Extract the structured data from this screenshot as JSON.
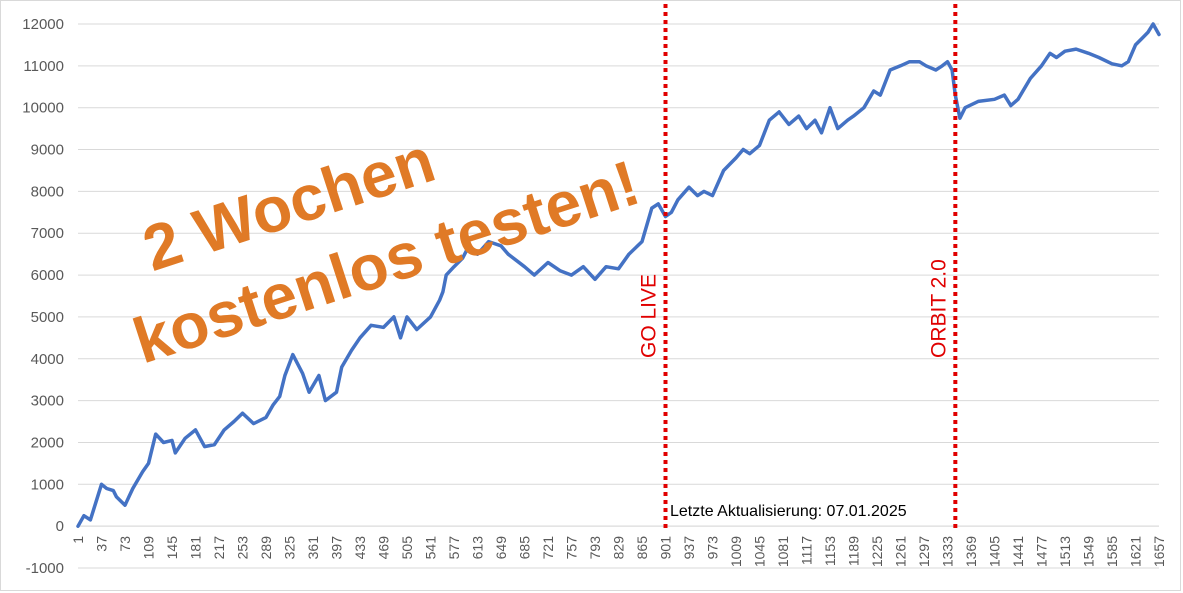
{
  "chart_data": {
    "type": "line",
    "title": "",
    "xlabel": "",
    "ylabel": "",
    "ylim": [
      -1000,
      12000
    ],
    "yticks": [
      -1000,
      0,
      1000,
      2000,
      3000,
      4000,
      5000,
      6000,
      7000,
      8000,
      9000,
      10000,
      11000,
      12000
    ],
    "xlim": [
      1,
      1657
    ],
    "xticks": [
      1,
      37,
      73,
      109,
      145,
      181,
      217,
      253,
      289,
      325,
      361,
      397,
      433,
      469,
      505,
      541,
      577,
      613,
      649,
      685,
      721,
      757,
      793,
      829,
      865,
      901,
      937,
      973,
      1009,
      1045,
      1081,
      1117,
      1153,
      1189,
      1225,
      1261,
      1297,
      1333,
      1369,
      1405,
      1441,
      1477,
      1513,
      1549,
      1585,
      1621,
      1657
    ],
    "grid": "horizontal",
    "legend": "none",
    "series": [
      {
        "color": "#4472c4",
        "points": [
          [
            1,
            0
          ],
          [
            10,
            250
          ],
          [
            20,
            150
          ],
          [
            37,
            1000
          ],
          [
            45,
            900
          ],
          [
            55,
            850
          ],
          [
            60,
            700
          ],
          [
            73,
            500
          ],
          [
            85,
            900
          ],
          [
            100,
            1300
          ],
          [
            109,
            1500
          ],
          [
            120,
            2200
          ],
          [
            132,
            2000
          ],
          [
            145,
            2050
          ],
          [
            150,
            1750
          ],
          [
            165,
            2100
          ],
          [
            181,
            2300
          ],
          [
            195,
            1900
          ],
          [
            210,
            1950
          ],
          [
            225,
            2300
          ],
          [
            240,
            2500
          ],
          [
            253,
            2700
          ],
          [
            270,
            2450
          ],
          [
            289,
            2600
          ],
          [
            300,
            2900
          ],
          [
            310,
            3100
          ],
          [
            318,
            3600
          ],
          [
            330,
            4100
          ],
          [
            345,
            3650
          ],
          [
            355,
            3200
          ],
          [
            370,
            3600
          ],
          [
            380,
            3000
          ],
          [
            397,
            3200
          ],
          [
            405,
            3800
          ],
          [
            420,
            4200
          ],
          [
            433,
            4500
          ],
          [
            450,
            4800
          ],
          [
            469,
            4750
          ],
          [
            485,
            5000
          ],
          [
            495,
            4500
          ],
          [
            505,
            5000
          ],
          [
            520,
            4700
          ],
          [
            541,
            5000
          ],
          [
            555,
            5400
          ],
          [
            560,
            5600
          ],
          [
            565,
            6000
          ],
          [
            577,
            6200
          ],
          [
            590,
            6400
          ],
          [
            600,
            6700
          ],
          [
            613,
            6500
          ],
          [
            630,
            6800
          ],
          [
            649,
            6700
          ],
          [
            660,
            6500
          ],
          [
            685,
            6200
          ],
          [
            700,
            6000
          ],
          [
            721,
            6300
          ],
          [
            740,
            6100
          ],
          [
            757,
            6000
          ],
          [
            775,
            6200
          ],
          [
            793,
            5900
          ],
          [
            810,
            6200
          ],
          [
            829,
            6150
          ],
          [
            845,
            6500
          ],
          [
            865,
            6800
          ],
          [
            880,
            7600
          ],
          [
            890,
            7700
          ],
          [
            901,
            7400
          ],
          [
            910,
            7500
          ],
          [
            920,
            7800
          ],
          [
            937,
            8100
          ],
          [
            950,
            7900
          ],
          [
            960,
            8000
          ],
          [
            973,
            7900
          ],
          [
            990,
            8500
          ],
          [
            1009,
            8800
          ],
          [
            1020,
            9000
          ],
          [
            1030,
            8900
          ],
          [
            1045,
            9100
          ],
          [
            1060,
            9700
          ],
          [
            1075,
            9900
          ],
          [
            1090,
            9600
          ],
          [
            1105,
            9800
          ],
          [
            1117,
            9500
          ],
          [
            1130,
            9700
          ],
          [
            1140,
            9400
          ],
          [
            1153,
            10000
          ],
          [
            1165,
            9500
          ],
          [
            1180,
            9700
          ],
          [
            1189,
            9800
          ],
          [
            1205,
            10000
          ],
          [
            1220,
            10400
          ],
          [
            1230,
            10300
          ],
          [
            1245,
            10900
          ],
          [
            1261,
            11000
          ],
          [
            1275,
            11100
          ],
          [
            1290,
            11100
          ],
          [
            1300,
            11000
          ],
          [
            1315,
            10900
          ],
          [
            1325,
            11000
          ],
          [
            1333,
            11100
          ],
          [
            1340,
            10900
          ],
          [
            1345,
            10300
          ],
          [
            1352,
            9750
          ],
          [
            1360,
            10000
          ],
          [
            1380,
            10150
          ],
          [
            1405,
            10200
          ],
          [
            1420,
            10300
          ],
          [
            1430,
            10050
          ],
          [
            1441,
            10200
          ],
          [
            1460,
            10700
          ],
          [
            1477,
            11000
          ],
          [
            1490,
            11300
          ],
          [
            1500,
            11200
          ],
          [
            1513,
            11350
          ],
          [
            1530,
            11400
          ],
          [
            1549,
            11300
          ],
          [
            1565,
            11200
          ],
          [
            1585,
            11050
          ],
          [
            1600,
            11000
          ],
          [
            1610,
            11100
          ],
          [
            1621,
            11500
          ],
          [
            1640,
            11800
          ],
          [
            1648,
            12000
          ],
          [
            1657,
            11750
          ]
        ]
      }
    ],
    "annotations": {
      "markers": [
        {
          "x": 901,
          "label": "GO LIVE",
          "color": "#e00000"
        },
        {
          "x": 1345,
          "label": "ORBIT 2.0",
          "color": "#e00000"
        }
      ],
      "promo_line1": "2 Wochen",
      "promo_line2": "kostenlos testen!",
      "promo_color": "#e07a26",
      "update_note": "Letzte Aktualisierung: 07.01.2025"
    }
  }
}
